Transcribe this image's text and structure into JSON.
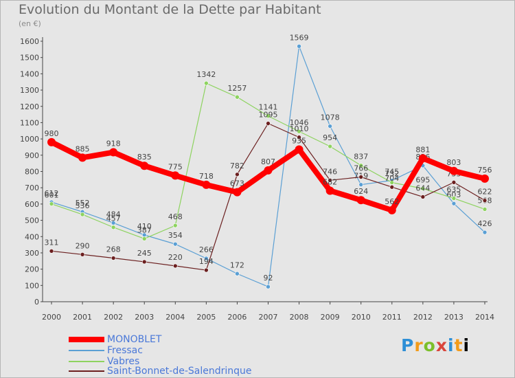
{
  "chart_data": {
    "type": "line",
    "title": "Evolution du Montant de la Dette par Habitant",
    "subtitle": "(en €)",
    "categories": [
      "2000",
      "2001",
      "2002",
      "2003",
      "2004",
      "2005",
      "2006",
      "2007",
      "2008",
      "2009",
      "2010",
      "2011",
      "2012",
      "2013",
      "2014"
    ],
    "y_ticks": [
      0,
      100,
      200,
      300,
      400,
      500,
      600,
      700,
      800,
      900,
      1000,
      1100,
      1200,
      1300,
      1400,
      1500,
      1600
    ],
    "ylim": [
      0,
      1600
    ],
    "grid": false,
    "legend_position": "bottom-left",
    "series": [
      {
        "name": "Fressac",
        "color": "#5a9fd4",
        "values": [
          612,
          552,
          484,
          410,
          354,
          266,
          172,
          92,
          1569,
          1078,
          719,
          745,
          836,
          603,
          426
        ],
        "labels": [
          "612",
          "552",
          "484",
          "410",
          "354",
          "266",
          "172",
          "92",
          "1569",
          "1078",
          "719",
          "745",
          "836",
          "603",
          "426"
        ]
      },
      {
        "name": "Vabres",
        "color": "#8dd35f",
        "values": [
          601,
          536,
          457,
          387,
          468,
          1342,
          1257,
          1141,
          1046,
          954,
          837,
          732,
          695,
          635,
          568
        ],
        "labels": [
          "601",
          "536",
          "457",
          "387",
          "468",
          "1342",
          "1257",
          "1141",
          "1046",
          "954",
          "837",
          "732",
          "695",
          "635",
          "568"
        ]
      },
      {
        "name": "Saint-Bonnet-de-Salendrinque",
        "color": "#6b1f1f",
        "values": [
          311,
          290,
          268,
          245,
          220,
          194,
          782,
          1095,
          1010,
          746,
          766,
          704,
          644,
          733,
          622
        ],
        "labels": [
          "311",
          "290",
          "268",
          "245",
          "220",
          "194",
          "782",
          "1095",
          "1010",
          "746",
          "766",
          "704",
          "644",
          "733",
          "622"
        ]
      },
      {
        "name": "MONOBLET",
        "color": "#ff0000",
        "values": [
          980,
          885,
          918,
          835,
          775,
          718,
          673,
          807,
          935,
          682,
          624,
          562,
          881,
          803,
          756
        ],
        "labels": [
          "980",
          "885",
          "918",
          "835",
          "775",
          "718",
          "673",
          "807",
          "935",
          "682",
          "624",
          "562",
          "881",
          "803",
          "756"
        ]
      }
    ]
  },
  "legend": {
    "items": [
      "MONOBLET",
      "Fressac",
      "Vabres",
      "Saint-Bonnet-de-Salendrinque"
    ]
  },
  "logo": {
    "letters": [
      "P",
      "r",
      "o",
      "x",
      "i",
      "t",
      "i"
    ]
  }
}
